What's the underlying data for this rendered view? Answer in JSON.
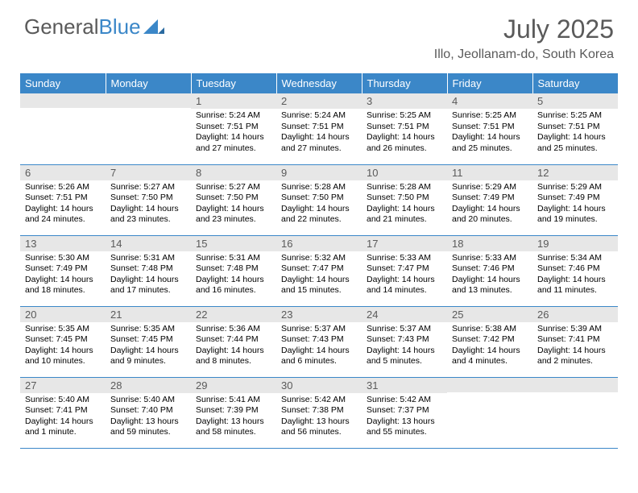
{
  "logo": {
    "text1": "General",
    "text2": "Blue"
  },
  "title": "July 2025",
  "location": "Illo, Jeollanam-do, South Korea",
  "colors": {
    "header_bg": "#3b87c8",
    "header_text": "#ffffff",
    "daynum_bg": "#e7e7e7",
    "daynum_text": "#5a5a5a",
    "body_text": "#000000",
    "border": "#3b87c8"
  },
  "weekdays": [
    "Sunday",
    "Monday",
    "Tuesday",
    "Wednesday",
    "Thursday",
    "Friday",
    "Saturday"
  ],
  "weeks": [
    [
      {
        "num": "",
        "lines": []
      },
      {
        "num": "",
        "lines": []
      },
      {
        "num": "1",
        "lines": [
          "Sunrise: 5:24 AM",
          "Sunset: 7:51 PM",
          "Daylight: 14 hours",
          "and 27 minutes."
        ]
      },
      {
        "num": "2",
        "lines": [
          "Sunrise: 5:24 AM",
          "Sunset: 7:51 PM",
          "Daylight: 14 hours",
          "and 27 minutes."
        ]
      },
      {
        "num": "3",
        "lines": [
          "Sunrise: 5:25 AM",
          "Sunset: 7:51 PM",
          "Daylight: 14 hours",
          "and 26 minutes."
        ]
      },
      {
        "num": "4",
        "lines": [
          "Sunrise: 5:25 AM",
          "Sunset: 7:51 PM",
          "Daylight: 14 hours",
          "and 25 minutes."
        ]
      },
      {
        "num": "5",
        "lines": [
          "Sunrise: 5:25 AM",
          "Sunset: 7:51 PM",
          "Daylight: 14 hours",
          "and 25 minutes."
        ]
      }
    ],
    [
      {
        "num": "6",
        "lines": [
          "Sunrise: 5:26 AM",
          "Sunset: 7:51 PM",
          "Daylight: 14 hours",
          "and 24 minutes."
        ]
      },
      {
        "num": "7",
        "lines": [
          "Sunrise: 5:27 AM",
          "Sunset: 7:50 PM",
          "Daylight: 14 hours",
          "and 23 minutes."
        ]
      },
      {
        "num": "8",
        "lines": [
          "Sunrise: 5:27 AM",
          "Sunset: 7:50 PM",
          "Daylight: 14 hours",
          "and 23 minutes."
        ]
      },
      {
        "num": "9",
        "lines": [
          "Sunrise: 5:28 AM",
          "Sunset: 7:50 PM",
          "Daylight: 14 hours",
          "and 22 minutes."
        ]
      },
      {
        "num": "10",
        "lines": [
          "Sunrise: 5:28 AM",
          "Sunset: 7:50 PM",
          "Daylight: 14 hours",
          "and 21 minutes."
        ]
      },
      {
        "num": "11",
        "lines": [
          "Sunrise: 5:29 AM",
          "Sunset: 7:49 PM",
          "Daylight: 14 hours",
          "and 20 minutes."
        ]
      },
      {
        "num": "12",
        "lines": [
          "Sunrise: 5:29 AM",
          "Sunset: 7:49 PM",
          "Daylight: 14 hours",
          "and 19 minutes."
        ]
      }
    ],
    [
      {
        "num": "13",
        "lines": [
          "Sunrise: 5:30 AM",
          "Sunset: 7:49 PM",
          "Daylight: 14 hours",
          "and 18 minutes."
        ]
      },
      {
        "num": "14",
        "lines": [
          "Sunrise: 5:31 AM",
          "Sunset: 7:48 PM",
          "Daylight: 14 hours",
          "and 17 minutes."
        ]
      },
      {
        "num": "15",
        "lines": [
          "Sunrise: 5:31 AM",
          "Sunset: 7:48 PM",
          "Daylight: 14 hours",
          "and 16 minutes."
        ]
      },
      {
        "num": "16",
        "lines": [
          "Sunrise: 5:32 AM",
          "Sunset: 7:47 PM",
          "Daylight: 14 hours",
          "and 15 minutes."
        ]
      },
      {
        "num": "17",
        "lines": [
          "Sunrise: 5:33 AM",
          "Sunset: 7:47 PM",
          "Daylight: 14 hours",
          "and 14 minutes."
        ]
      },
      {
        "num": "18",
        "lines": [
          "Sunrise: 5:33 AM",
          "Sunset: 7:46 PM",
          "Daylight: 14 hours",
          "and 13 minutes."
        ]
      },
      {
        "num": "19",
        "lines": [
          "Sunrise: 5:34 AM",
          "Sunset: 7:46 PM",
          "Daylight: 14 hours",
          "and 11 minutes."
        ]
      }
    ],
    [
      {
        "num": "20",
        "lines": [
          "Sunrise: 5:35 AM",
          "Sunset: 7:45 PM",
          "Daylight: 14 hours",
          "and 10 minutes."
        ]
      },
      {
        "num": "21",
        "lines": [
          "Sunrise: 5:35 AM",
          "Sunset: 7:45 PM",
          "Daylight: 14 hours",
          "and 9 minutes."
        ]
      },
      {
        "num": "22",
        "lines": [
          "Sunrise: 5:36 AM",
          "Sunset: 7:44 PM",
          "Daylight: 14 hours",
          "and 8 minutes."
        ]
      },
      {
        "num": "23",
        "lines": [
          "Sunrise: 5:37 AM",
          "Sunset: 7:43 PM",
          "Daylight: 14 hours",
          "and 6 minutes."
        ]
      },
      {
        "num": "24",
        "lines": [
          "Sunrise: 5:37 AM",
          "Sunset: 7:43 PM",
          "Daylight: 14 hours",
          "and 5 minutes."
        ]
      },
      {
        "num": "25",
        "lines": [
          "Sunrise: 5:38 AM",
          "Sunset: 7:42 PM",
          "Daylight: 14 hours",
          "and 4 minutes."
        ]
      },
      {
        "num": "26",
        "lines": [
          "Sunrise: 5:39 AM",
          "Sunset: 7:41 PM",
          "Daylight: 14 hours",
          "and 2 minutes."
        ]
      }
    ],
    [
      {
        "num": "27",
        "lines": [
          "Sunrise: 5:40 AM",
          "Sunset: 7:41 PM",
          "Daylight: 14 hours",
          "and 1 minute."
        ]
      },
      {
        "num": "28",
        "lines": [
          "Sunrise: 5:40 AM",
          "Sunset: 7:40 PM",
          "Daylight: 13 hours",
          "and 59 minutes."
        ]
      },
      {
        "num": "29",
        "lines": [
          "Sunrise: 5:41 AM",
          "Sunset: 7:39 PM",
          "Daylight: 13 hours",
          "and 58 minutes."
        ]
      },
      {
        "num": "30",
        "lines": [
          "Sunrise: 5:42 AM",
          "Sunset: 7:38 PM",
          "Daylight: 13 hours",
          "and 56 minutes."
        ]
      },
      {
        "num": "31",
        "lines": [
          "Sunrise: 5:42 AM",
          "Sunset: 7:37 PM",
          "Daylight: 13 hours",
          "and 55 minutes."
        ]
      },
      {
        "num": "",
        "lines": []
      },
      {
        "num": "",
        "lines": []
      }
    ]
  ]
}
